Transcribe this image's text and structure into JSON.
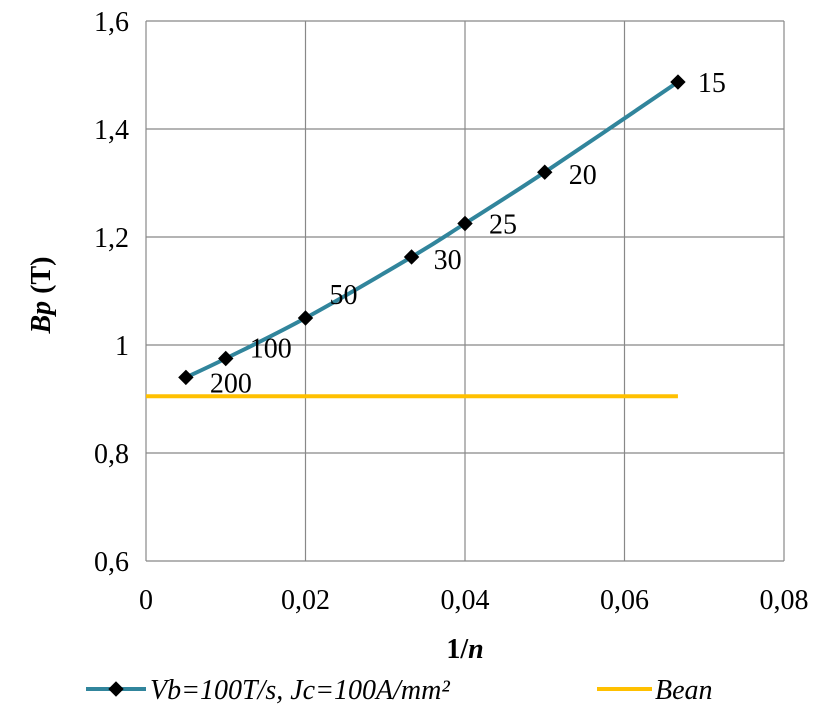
{
  "chart_data": {
    "type": "line",
    "xlabel_main": "1/",
    "xlabel_italic": "n",
    "ylabel_italic": "Bp",
    "ylabel_rest": " (T)",
    "xlim": [
      0,
      0.08
    ],
    "ylim": [
      0.6,
      1.6
    ],
    "x_ticks": [
      "0",
      "0,02",
      "0,04",
      "0,06",
      "0,08"
    ],
    "y_ticks": [
      "0,6",
      "0,8",
      "1",
      "1,2",
      "1,4",
      "1,6"
    ],
    "grid": true,
    "legend_position": "bottom",
    "series": [
      {
        "name": "Vb=100T/s, Jc=100A/mm²",
        "color": "#31859C",
        "marker": "diamond",
        "points": [
          {
            "x": 0.005,
            "y": 0.94,
            "label": "200"
          },
          {
            "x": 0.01,
            "y": 0.975,
            "label": "100"
          },
          {
            "x": 0.02,
            "y": 1.05,
            "label": "50"
          },
          {
            "x": 0.0333,
            "y": 1.163,
            "label": "30"
          },
          {
            "x": 0.04,
            "y": 1.225,
            "label": "25"
          },
          {
            "x": 0.05,
            "y": 1.32,
            "label": "20"
          },
          {
            "x": 0.0667,
            "y": 1.487,
            "label": "15"
          }
        ]
      },
      {
        "name": "Bean",
        "color": "#FFC000",
        "marker": "none",
        "points": [
          {
            "x": 0.0,
            "y": 0.905
          },
          {
            "x": 0.0667,
            "y": 0.905
          }
        ]
      }
    ]
  }
}
